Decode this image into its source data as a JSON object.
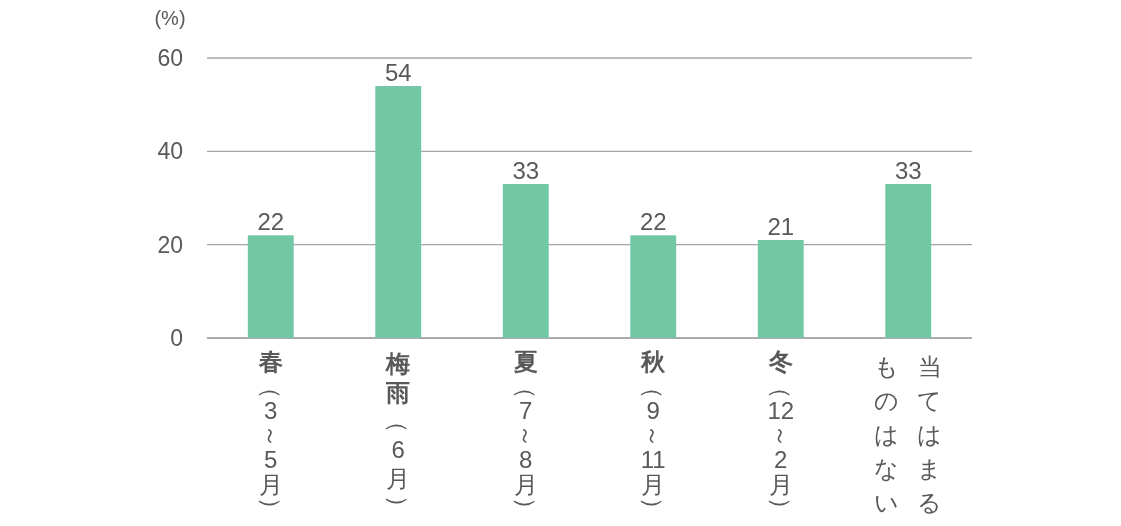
{
  "chart_data": {
    "type": "bar",
    "ylabel": "(%)",
    "categories": [
      "春（3～5月）",
      "梅雨（6月）",
      "夏（7～8月）",
      "秋（9～11月）",
      "冬（12～2月）",
      "当てはまるものはない"
    ],
    "values": [
      22,
      54,
      33,
      22,
      21,
      33
    ],
    "color": "#72c8a4",
    "ylim": [
      0,
      60
    ],
    "yticks": [
      0,
      20,
      40,
      60
    ],
    "grid": "y",
    "data_labels": true
  }
}
